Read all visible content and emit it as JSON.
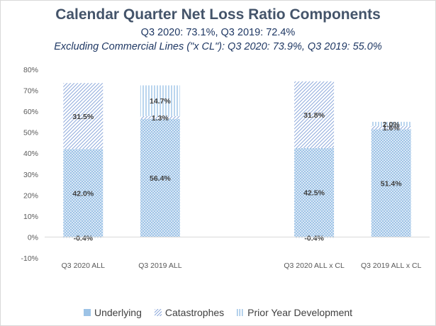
{
  "chart_data": {
    "type": "bar",
    "stacked": true,
    "title": "Calendar Quarter Net Loss Ratio Components",
    "subtitle": "Q3 2020: 73.1%, Q3 2019: 72.4%",
    "subtitle2": "Excluding Commercial Lines (\"x CL\"): Q3 2020: 73.9%, Q3 2019: 55.0%",
    "categories": [
      "Q3 2020 ALL",
      "Q3 2019 ALL",
      "",
      "Q3 2020 ALL x CL",
      "Q3 2019 ALL x CL"
    ],
    "series": [
      {
        "name": "Underlying",
        "values": [
          42.0,
          56.4,
          null,
          42.5,
          51.4
        ],
        "labels": [
          "42.0%",
          "56.4%",
          "",
          "42.5%",
          "51.4%"
        ]
      },
      {
        "name": "Catastrophes",
        "values": [
          31.5,
          1.3,
          null,
          31.8,
          1.6
        ],
        "labels": [
          "31.5%",
          "1.3%",
          "",
          "31.8%",
          "1.6%"
        ]
      },
      {
        "name": "Prior Year Development",
        "values": [
          -0.4,
          14.7,
          null,
          -0.4,
          2.0
        ],
        "labels": [
          "-0.4%",
          "14.7%",
          "",
          "-0.4%",
          "2.0%"
        ]
      }
    ],
    "ylim": [
      -10,
      80
    ],
    "ytick_step": 10,
    "yticks": [
      "-10%",
      "0%",
      "10%",
      "20%",
      "30%",
      "40%",
      "50%",
      "60%",
      "70%",
      "80%"
    ],
    "grid": false,
    "legend": "bottom",
    "colors": {
      "underlying": "#9dc3e6",
      "catastrophes": "#8faadc",
      "prior_year": "#9dc3e6",
      "text": "#404040"
    }
  }
}
